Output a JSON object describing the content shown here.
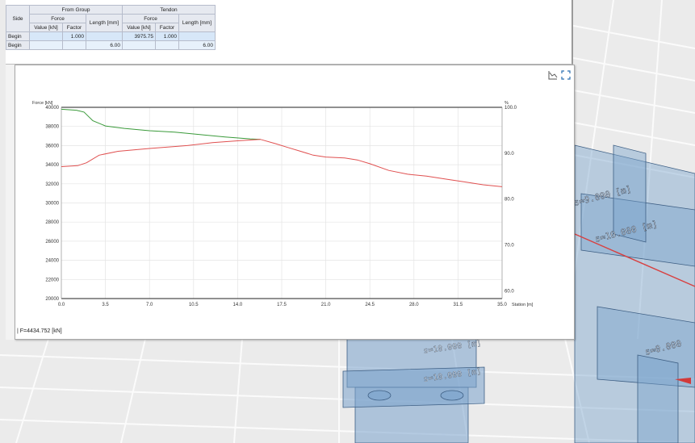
{
  "table": {
    "group_from": "From Group",
    "group_tendon": "Tendon",
    "col_side": "Side",
    "col_force": "Force",
    "col_length": "Length [mm]",
    "col_value": "Value [kN]",
    "col_factor": "Factor",
    "rows": [
      {
        "side": "Begin",
        "from_value": "",
        "from_factor": "1.000",
        "from_length": "",
        "tendon_value": "3975.75",
        "tendon_factor": "1.000",
        "tendon_length": ""
      },
      {
        "side": "Begin",
        "from_value": "",
        "from_factor": "",
        "from_length": "6.00",
        "tendon_value": "",
        "tendon_factor": "",
        "tendon_length": "6.00"
      }
    ]
  },
  "status": "| F=4434.752 [kN]",
  "icons": [
    "chart-icon",
    "fullscreen-icon"
  ],
  "chart_data": {
    "type": "line",
    "ylabel": "Force [kN]",
    "y2label": "%",
    "xlabel": "Station [m]",
    "xlim": [
      0,
      35
    ],
    "ylim": [
      20000,
      40000
    ],
    "y2lim": [
      58.3,
      100
    ],
    "xticks": [
      "0.0",
      "3.5",
      "7.0",
      "10.5",
      "14.0",
      "17.5",
      "21.0",
      "24.5",
      "28.0",
      "31.5",
      "35.0"
    ],
    "yticks": [
      "40000",
      "38000",
      "36000",
      "34000",
      "32000",
      "30000",
      "28000",
      "26000",
      "24000",
      "22000",
      "20000"
    ],
    "y2ticks": [
      "100.0",
      "90.0",
      "80.0",
      "70.0",
      "60.0"
    ],
    "series": [
      {
        "color": "#3a9a3a",
        "x": [
          0,
          1.2,
          1.8,
          2.5,
          3.5,
          5,
          7,
          9,
          11,
          13,
          15,
          15.8
        ],
        "y": [
          39800,
          39700,
          39500,
          38600,
          38050,
          37800,
          37550,
          37400,
          37150,
          36900,
          36700,
          36650
        ]
      },
      {
        "color": "#e05050",
        "x": [
          0,
          1.3,
          2,
          3,
          4.5,
          7,
          10,
          12,
          14,
          15.8,
          17,
          18,
          19,
          20,
          21,
          22.5,
          23.5,
          24.5,
          26,
          27.5,
          29,
          30.5,
          32,
          33.5,
          35
        ],
        "y": [
          33800,
          33900,
          34200,
          35000,
          35400,
          35700,
          36000,
          36300,
          36500,
          36650,
          36200,
          35800,
          35400,
          35000,
          34800,
          34700,
          34500,
          34100,
          33400,
          33000,
          32800,
          32500,
          32200,
          31900,
          31700
        ]
      }
    ]
  }
}
